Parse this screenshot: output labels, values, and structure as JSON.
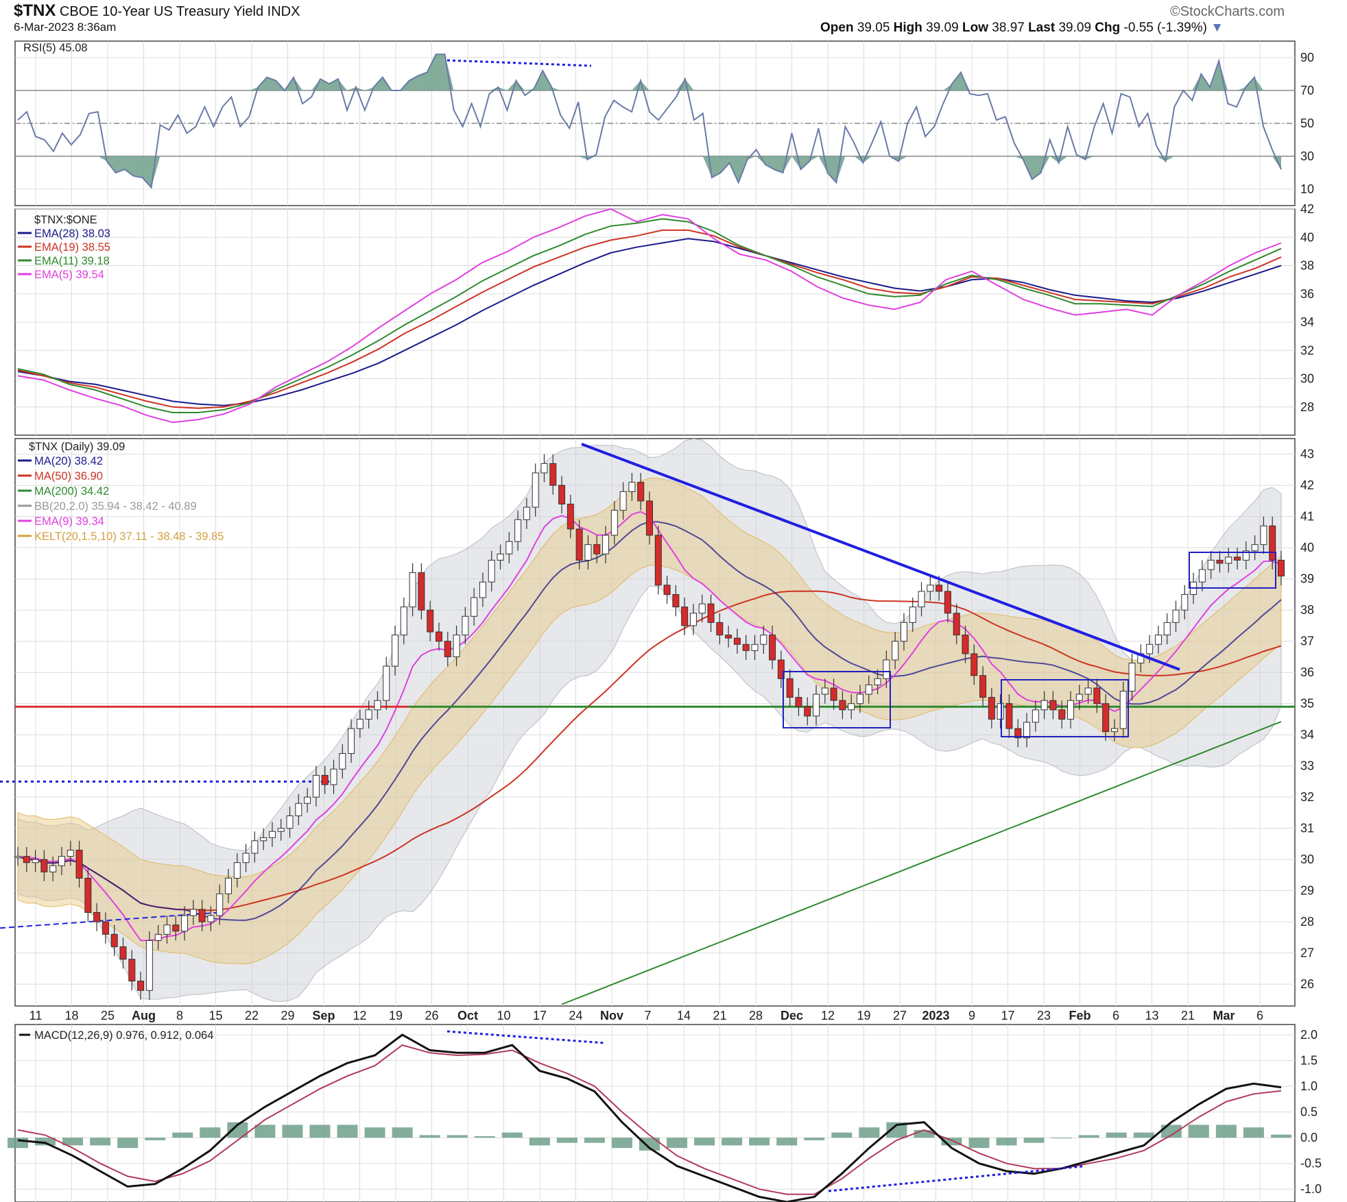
{
  "header": {
    "symbol": "$TNX",
    "name": "CBOE 10-Year US Treasury Yield",
    "exchange": "INDX",
    "date": "6-Mar-2023 8:36am",
    "brand": "©StockCharts.com",
    "open_label": "Open",
    "open": "39.05",
    "high_label": "High",
    "high": "39.09",
    "low_label": "Low",
    "low": "38.97",
    "last_label": "Last",
    "last": "39.09",
    "chg_label": "Chg",
    "chg": "-0.55 (-1.39%)"
  },
  "colors": {
    "up": "#ffffff",
    "down": "#d62b2b",
    "ma20": "#1a1a8c",
    "ma50": "#cc3322",
    "ma200": "#2d8a2d",
    "ema9": "#e040e0",
    "bb": "#c8ccd2",
    "kelt": "#e8c880",
    "trend": "#1f1fe0",
    "support": "#2d8a2d",
    "resist": "#dd3030",
    "rsi": "#6a7aa8",
    "hist": "#6f9f8a",
    "signal": "#b03a58"
  },
  "chart_data": [
    {
      "type": "line",
      "title": "RSI(5) 45.08",
      "ylim": [
        0,
        100
      ],
      "yticks": [
        "10",
        "30",
        "50",
        "70",
        "90"
      ],
      "series": [
        {
          "name": "RSI(5)",
          "values": [
            52,
            57,
            42,
            40,
            33,
            44,
            37,
            43,
            56,
            57,
            27,
            20,
            22,
            18,
            17,
            11,
            49,
            46,
            55,
            44,
            48,
            60,
            48,
            60,
            66,
            48,
            54,
            72,
            78,
            76,
            70,
            78,
            62,
            66,
            77,
            74,
            77,
            58,
            72,
            58,
            72,
            78,
            70,
            70,
            76,
            79,
            81,
            92,
            92,
            58,
            48,
            62,
            48,
            68,
            72,
            58,
            76,
            67,
            71,
            82,
            72,
            55,
            47,
            63,
            28,
            31,
            54,
            64,
            60,
            57,
            76,
            57,
            52,
            59,
            66,
            77,
            52,
            56,
            17,
            20,
            26,
            14,
            28,
            34,
            25,
            22,
            20,
            44,
            22,
            27,
            47,
            20,
            14,
            48,
            38,
            26,
            38,
            51,
            30,
            27,
            50,
            60,
            42,
            48,
            62,
            74,
            81,
            68,
            67,
            68,
            52,
            54,
            38,
            28,
            16,
            20,
            40,
            26,
            48,
            31,
            28,
            48,
            62,
            44,
            68,
            66,
            48,
            56,
            36,
            27,
            60,
            70,
            64,
            80,
            72,
            88,
            62,
            60,
            72,
            78,
            48,
            34,
            22
          ]
        }
      ],
      "reference_lines": [
        30,
        50,
        70
      ],
      "annotations": [
        "negative divergence dotted line near Oct peak"
      ]
    },
    {
      "type": "line",
      "title": "$TNX:$ONE",
      "ylim": [
        26,
        42
      ],
      "yticks": [
        "28",
        "30",
        "32",
        "34",
        "36",
        "38",
        "40",
        "42"
      ],
      "series": [
        {
          "name": "EMA(28) 38.03",
          "values": [
            30.5,
            30.2,
            29.8,
            29.6,
            29.2,
            28.8,
            28.4,
            28.2,
            28.1,
            28.3,
            28.7,
            29.2,
            29.8,
            30.4,
            31.1,
            32.0,
            32.9,
            33.8,
            34.8,
            35.7,
            36.6,
            37.4,
            38.2,
            38.9,
            39.3,
            39.6,
            39.9,
            39.7,
            39.2,
            38.7,
            38.2,
            37.7,
            37.2,
            36.8,
            36.4,
            36.2,
            36.5,
            37.0,
            37.1,
            36.8,
            36.3,
            35.9,
            35.7,
            35.5,
            35.4,
            35.7,
            36.2,
            36.8,
            37.4,
            38.0
          ]
        },
        {
          "name": "EMA(19) 38.55",
          "values": [
            30.6,
            30.2,
            29.7,
            29.4,
            28.9,
            28.4,
            28.0,
            27.9,
            28.0,
            28.4,
            29.0,
            29.7,
            30.4,
            31.2,
            32.1,
            33.2,
            34.1,
            35.1,
            36.1,
            37.0,
            37.9,
            38.6,
            39.3,
            39.8,
            40.1,
            40.5,
            40.5,
            40.1,
            39.3,
            38.7,
            38.1,
            37.5,
            37.0,
            36.4,
            36.1,
            36.0,
            36.5,
            37.2,
            37.1,
            36.6,
            36.1,
            35.6,
            35.5,
            35.4,
            35.3,
            35.8,
            36.4,
            37.2,
            37.8,
            38.6
          ]
        },
        {
          "name": "EMA(11) 39.18",
          "values": [
            30.7,
            30.3,
            29.6,
            29.2,
            28.6,
            28.0,
            27.6,
            27.6,
            27.8,
            28.3,
            29.2,
            30.0,
            30.8,
            31.7,
            32.7,
            33.8,
            34.8,
            35.8,
            36.9,
            37.8,
            38.7,
            39.4,
            40.2,
            40.8,
            41.0,
            41.3,
            41.1,
            40.4,
            39.4,
            38.7,
            38.0,
            37.2,
            36.6,
            36.0,
            35.8,
            35.9,
            36.7,
            37.3,
            37.0,
            36.4,
            35.9,
            35.3,
            35.3,
            35.2,
            35.1,
            35.9,
            36.7,
            37.6,
            38.4,
            39.2
          ]
        },
        {
          "name": "EMA(5) 39.54",
          "values": [
            30.2,
            29.9,
            29.2,
            28.6,
            28.1,
            27.4,
            26.9,
            27.1,
            27.5,
            28.2,
            29.4,
            30.3,
            31.2,
            32.3,
            33.6,
            34.8,
            36.0,
            37.0,
            38.2,
            39.0,
            40.0,
            40.7,
            41.5,
            42.0,
            41.1,
            41.6,
            41.3,
            39.9,
            38.8,
            38.4,
            37.6,
            36.5,
            35.7,
            35.2,
            34.9,
            35.4,
            37.0,
            37.6,
            36.6,
            35.6,
            35.0,
            34.5,
            34.7,
            34.9,
            34.5,
            35.9,
            36.9,
            38.0,
            38.9,
            39.6
          ]
        }
      ]
    },
    {
      "type": "candlestick",
      "title": "$TNX (Daily) 39.09",
      "ylim": [
        25.3,
        43.5
      ],
      "yticks": [
        "26",
        "27",
        "28",
        "29",
        "30",
        "31",
        "32",
        "33",
        "34",
        "35",
        "36",
        "37",
        "38",
        "39",
        "40",
        "41",
        "42",
        "43"
      ],
      "xticks": [
        "11",
        "18",
        "25",
        "Aug",
        "8",
        "15",
        "22",
        "29",
        "Sep",
        "12",
        "19",
        "26",
        "Oct",
        "10",
        "17",
        "24",
        "Nov",
        "7",
        "14",
        "21",
        "28",
        "Dec",
        "12",
        "19",
        "27",
        "2023",
        "9",
        "17",
        "23",
        "Feb",
        "6",
        "13",
        "21",
        "Mar",
        "6"
      ],
      "legend": [
        "MA(20) 38.42",
        "MA(50) 36.90",
        "MA(200) 34.42",
        "BB(20,2.0) 35.94 - 38.42 - 40.89",
        "EMA(9) 39.34",
        "KELT(20,1.5,10) 37.11 - 38.48 - 39.85"
      ],
      "close": [
        30.1,
        29.9,
        30.0,
        29.6,
        29.8,
        30.1,
        30.3,
        29.4,
        28.3,
        28.0,
        27.6,
        27.2,
        26.8,
        26.1,
        25.8,
        27.4,
        27.6,
        27.9,
        27.7,
        28.2,
        28.4,
        28.0,
        28.2,
        28.9,
        29.4,
        29.9,
        30.2,
        30.6,
        30.7,
        30.9,
        31.0,
        31.4,
        31.8,
        32.0,
        32.7,
        32.4,
        32.9,
        33.4,
        34.2,
        34.5,
        34.8,
        35.1,
        36.2,
        37.2,
        38.1,
        39.2,
        38.0,
        37.3,
        37.0,
        36.5,
        37.2,
        37.8,
        38.4,
        38.9,
        39.6,
        39.8,
        40.2,
        40.9,
        41.3,
        42.4,
        42.7,
        42.0,
        41.4,
        40.6,
        39.6,
        40.1,
        39.8,
        40.4,
        41.2,
        41.8,
        42.1,
        41.5,
        40.4,
        38.8,
        38.5,
        38.1,
        37.5,
        37.9,
        38.2,
        37.6,
        37.2,
        37.1,
        36.9,
        36.7,
        36.9,
        37.2,
        36.4,
        35.8,
        35.2,
        34.9,
        34.6,
        35.3,
        35.5,
        35.1,
        34.8,
        35.0,
        35.3,
        35.6,
        35.8,
        36.4,
        37.0,
        37.6,
        38.1,
        38.6,
        38.8,
        38.6,
        37.9,
        37.2,
        36.6,
        35.9,
        35.2,
        34.5,
        35.0,
        34.2,
        33.9,
        34.4,
        34.8,
        35.1,
        34.8,
        34.5,
        35.1,
        35.3,
        35.5,
        35.0,
        34.1,
        34.2,
        35.4,
        36.3,
        36.6,
        36.9,
        37.2,
        37.6,
        38.0,
        38.5,
        38.9,
        39.3,
        39.6,
        39.5,
        39.7,
        39.6,
        39.9,
        40.1,
        40.7,
        39.6,
        39.09
      ],
      "horizontal_levels": [
        {
          "name": "support",
          "value": 34.9
        },
        {
          "name": "resistance",
          "value": 34.9
        }
      ]
    },
    {
      "type": "line",
      "title": "MACD(12,26,9) 0.976, 0.912, 0.064",
      "ylim": [
        -1.25,
        2.2
      ],
      "yticks": [
        "-1.0",
        "-0.5",
        "0.0",
        "0.5",
        "1.0",
        "1.5",
        "2.0"
      ],
      "series": [
        {
          "name": "MACD",
          "values": [
            -0.05,
            -0.1,
            -0.35,
            -0.65,
            -0.95,
            -0.9,
            -0.6,
            -0.25,
            0.25,
            0.6,
            0.9,
            1.2,
            1.45,
            1.6,
            2.0,
            1.7,
            1.65,
            1.65,
            1.8,
            1.3,
            1.15,
            0.9,
            0.3,
            -0.2,
            -0.55,
            -0.75,
            -0.95,
            -1.15,
            -1.25,
            -1.15,
            -0.7,
            -0.2,
            0.25,
            0.3,
            -0.2,
            -0.5,
            -0.65,
            -0.7,
            -0.6,
            -0.45,
            -0.3,
            -0.15,
            0.3,
            0.65,
            0.95,
            1.05,
            0.98
          ]
        },
        {
          "name": "Signal",
          "values": [
            0.15,
            0.05,
            -0.2,
            -0.5,
            -0.75,
            -0.85,
            -0.7,
            -0.45,
            -0.05,
            0.35,
            0.65,
            0.95,
            1.2,
            1.4,
            1.8,
            1.65,
            1.6,
            1.62,
            1.7,
            1.45,
            1.25,
            1.0,
            0.5,
            0.05,
            -0.35,
            -0.6,
            -0.8,
            -1.0,
            -1.1,
            -1.1,
            -0.8,
            -0.4,
            -0.05,
            0.15,
            -0.05,
            -0.3,
            -0.5,
            -0.6,
            -0.6,
            -0.5,
            -0.4,
            -0.25,
            0.05,
            0.4,
            0.7,
            0.85,
            0.91
          ]
        }
      ],
      "histogram": [
        -0.2,
        -0.15,
        -0.15,
        -0.15,
        -0.2,
        -0.05,
        0.1,
        0.2,
        0.3,
        0.25,
        0.25,
        0.25,
        0.25,
        0.2,
        0.2,
        0.05,
        0.05,
        0.03,
        0.1,
        -0.15,
        -0.1,
        -0.1,
        -0.2,
        -0.25,
        -0.2,
        -0.15,
        -0.15,
        -0.15,
        -0.15,
        -0.05,
        0.1,
        0.2,
        0.3,
        0.15,
        -0.15,
        -0.2,
        -0.15,
        -0.1,
        0.0,
        0.05,
        0.1,
        0.1,
        0.25,
        0.25,
        0.25,
        0.2,
        0.06
      ]
    }
  ]
}
